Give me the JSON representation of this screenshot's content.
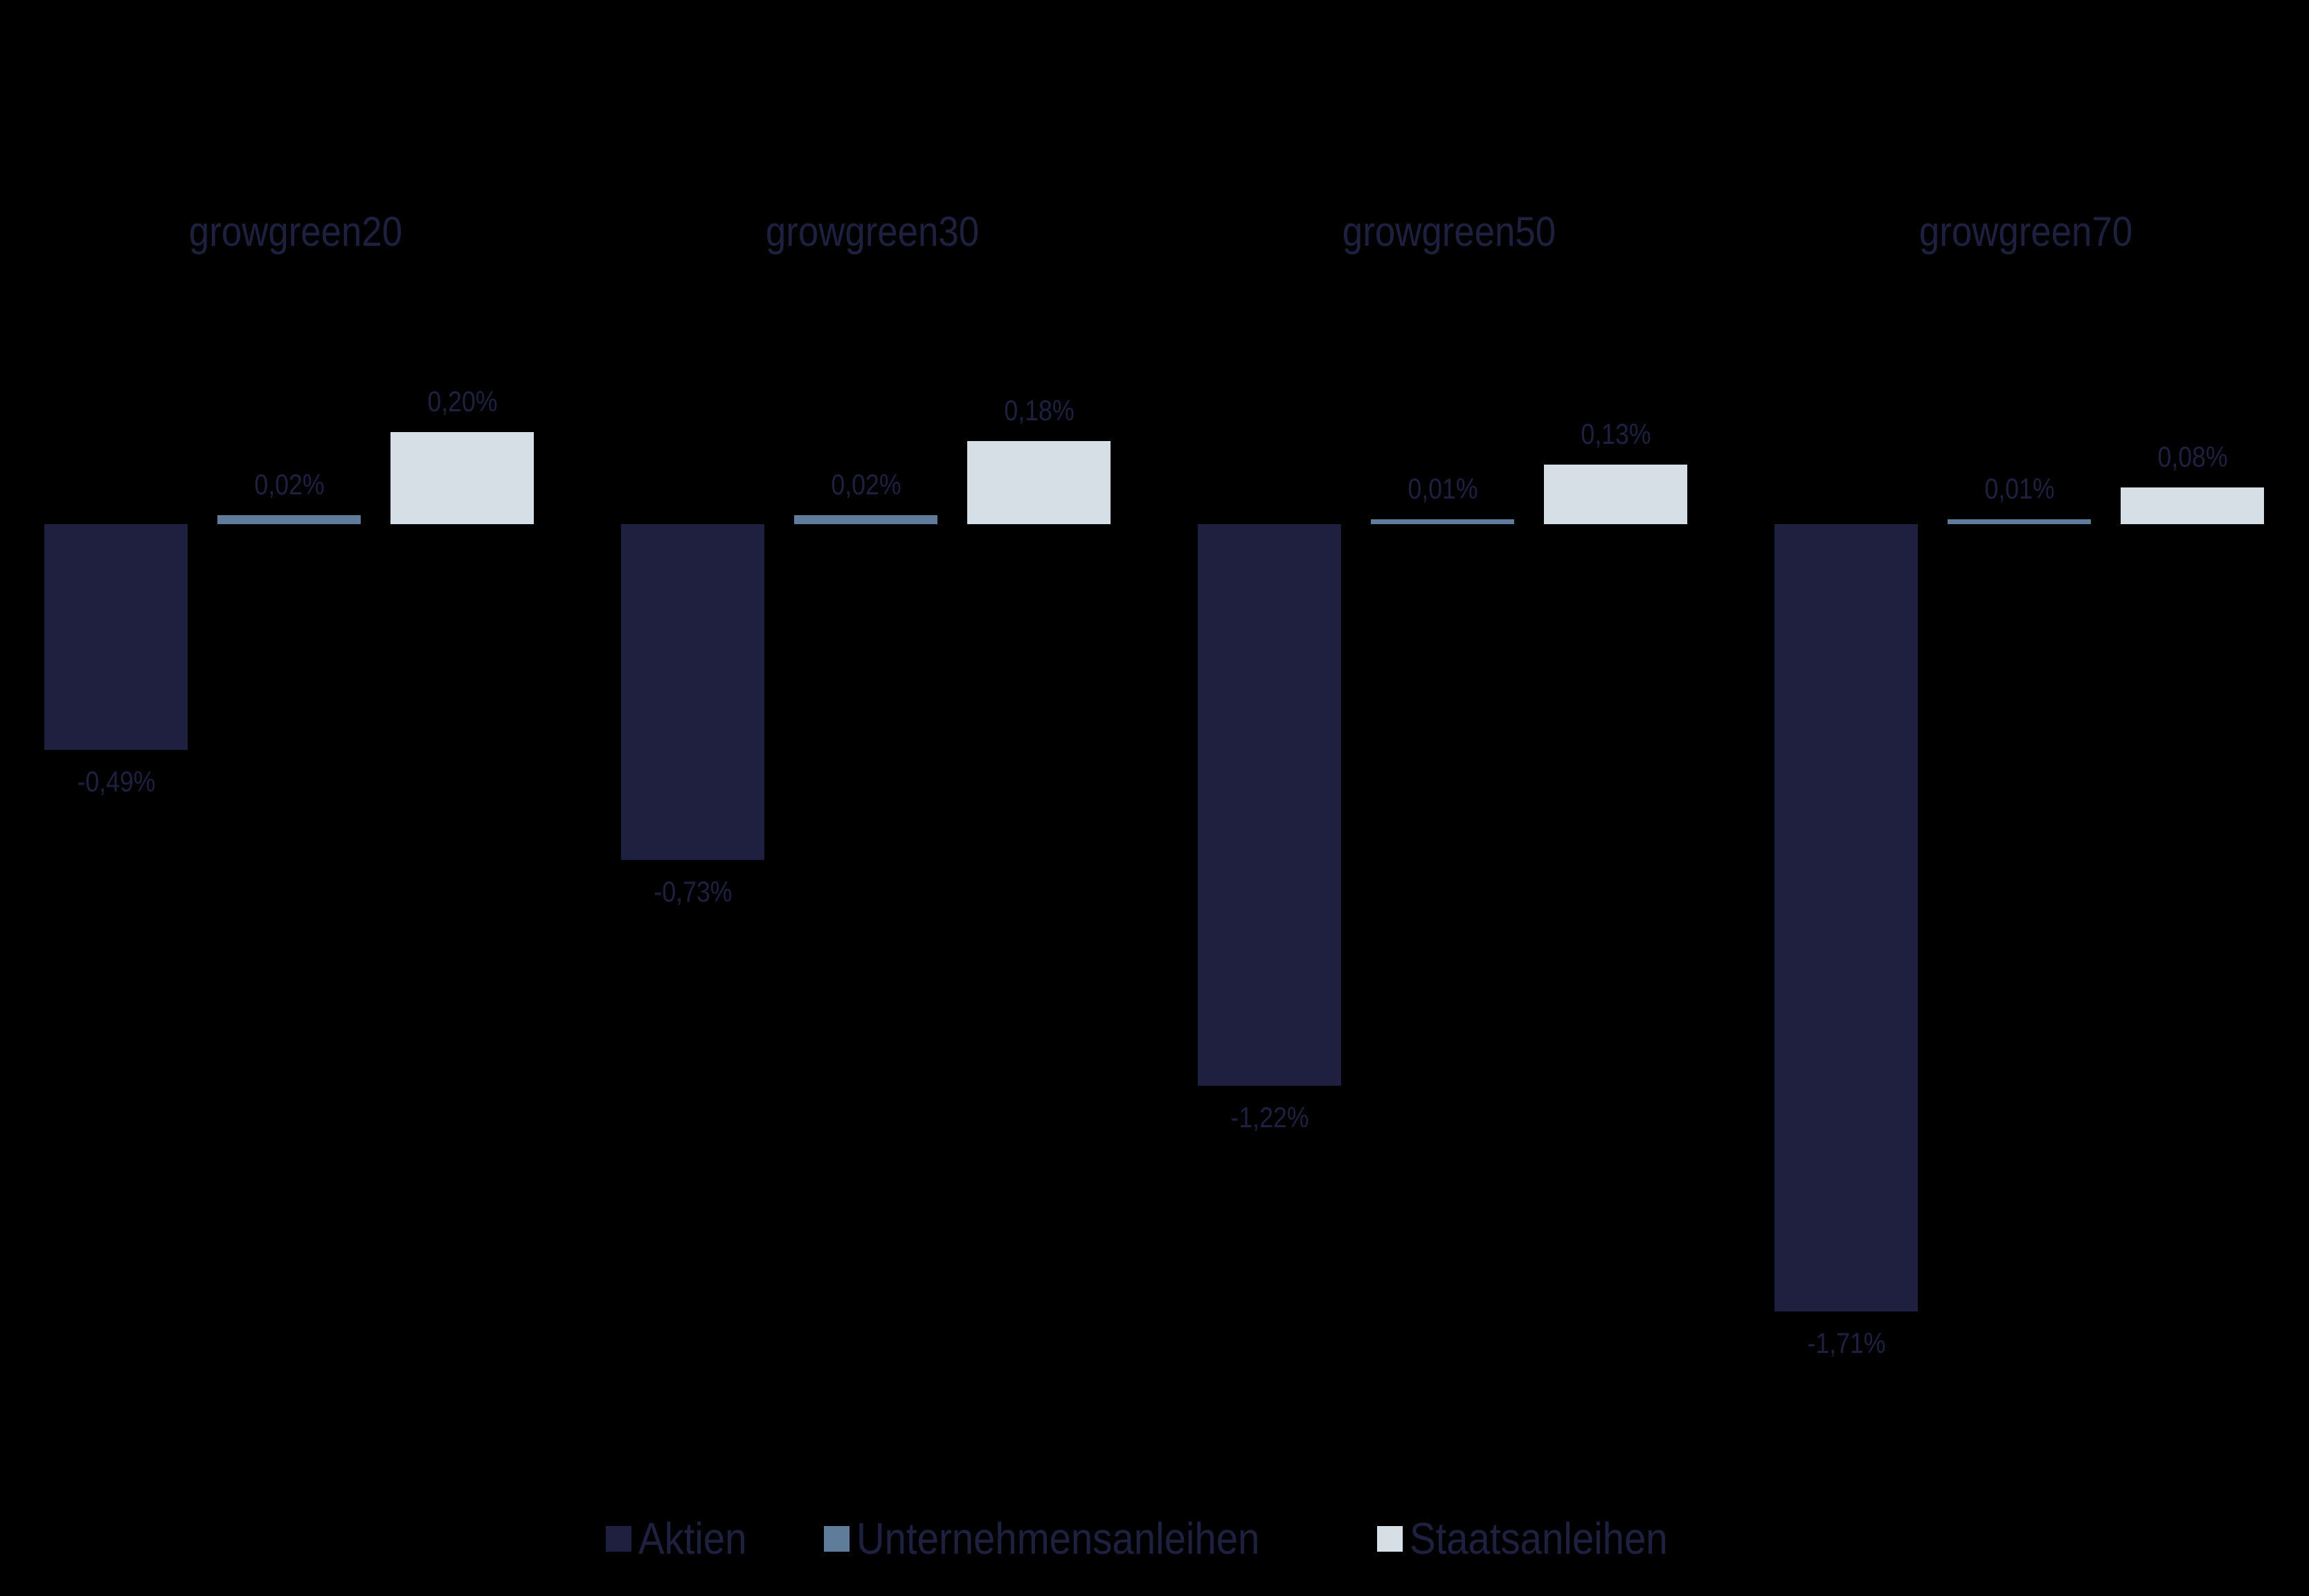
{
  "chart_data": {
    "type": "bar",
    "title": "",
    "xlabel": "",
    "ylabel": "",
    "categories": [
      "growgreen20",
      "growgreen30",
      "growgreen50",
      "growgreen70"
    ],
    "series": [
      {
        "name": "Aktien",
        "color": "#1f2040",
        "values": [
          -0.49,
          -0.73,
          -1.22,
          -1.71
        ],
        "labels": [
          "-0,49%",
          "-0,73%",
          "-1,22%",
          "-1,71%"
        ]
      },
      {
        "name": "Unternehmensanleihen",
        "color": "#5f7d9b",
        "values": [
          0.02,
          0.02,
          0.01,
          0.01
        ],
        "labels": [
          "0,02%",
          "0,02%",
          "0,01%",
          "0,01%"
        ]
      },
      {
        "name": "Staatsanleihen",
        "color": "#d6dee6",
        "values": [
          0.2,
          0.18,
          0.13,
          0.08
        ],
        "labels": [
          "0,20%",
          "0,18%",
          "0,13%",
          "0,08%"
        ]
      }
    ],
    "grid": false,
    "legend_position": "bottom",
    "layout": "small multiples, one panel per category"
  },
  "panels": [
    {
      "title": "growgreen20"
    },
    {
      "title": "growgreen30"
    },
    {
      "title": "growgreen50"
    },
    {
      "title": "growgreen70"
    }
  ],
  "legend": [
    {
      "label": "Aktien",
      "color": "#1f2040"
    },
    {
      "label": "Unternehmensanleihen",
      "color": "#5f7d9b"
    },
    {
      "label": "Staatsanleihen",
      "color": "#d6dee6"
    }
  ],
  "colors": {
    "background": "#000000",
    "text": "#1f2040"
  }
}
